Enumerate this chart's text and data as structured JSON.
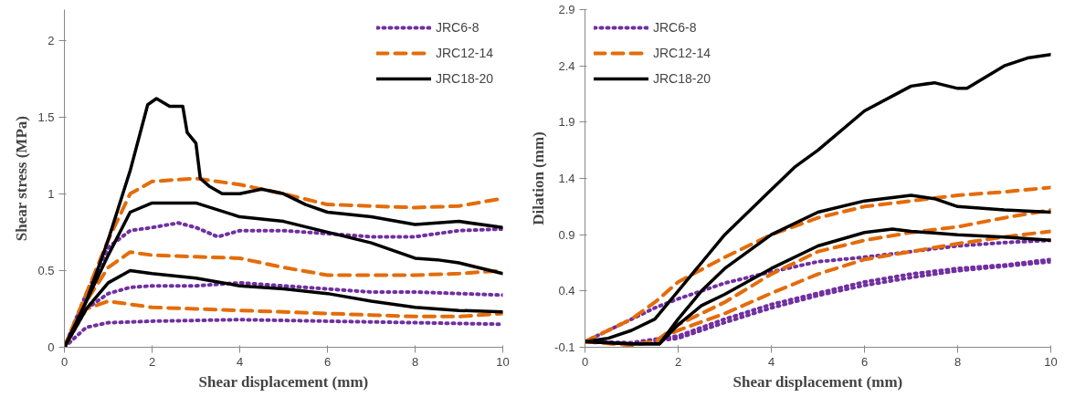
{
  "chart_data": [
    {
      "type": "line",
      "xlabel": "Shear displacement (mm)",
      "ylabel": "Shear stress (MPa)",
      "xlim": [
        0,
        10
      ],
      "ylim": [
        0,
        2.2
      ],
      "xticks": [
        0,
        2,
        4,
        6,
        8,
        10
      ],
      "yticks": [
        0,
        0.5,
        1,
        1.5,
        2
      ],
      "grid": false,
      "legend": "top right",
      "series": [
        {
          "name": "JRC6-8",
          "color": "#7030a0",
          "line_style": "dotted",
          "x": [
            0,
            0.5,
            1,
            1.5,
            2,
            2.6,
            3,
            3.5,
            4,
            5,
            6,
            7,
            8,
            9,
            10
          ],
          "values": [
            0,
            0.35,
            0.65,
            0.76,
            0.78,
            0.81,
            0.78,
            0.72,
            0.76,
            0.76,
            0.74,
            0.72,
            0.72,
            0.76,
            0.77
          ]
        },
        {
          "name": "JRC12-14",
          "color": "#e46c0a",
          "line_style": "dashed",
          "x": [
            0,
            0.5,
            1,
            1.5,
            2,
            3,
            4,
            5,
            6,
            7,
            8,
            9,
            10
          ],
          "values": [
            0,
            0.35,
            0.7,
            1.0,
            1.08,
            1.1,
            1.06,
            1.0,
            0.93,
            0.92,
            0.91,
            0.92,
            0.97
          ]
        },
        {
          "name": "JRC18-20",
          "color": "#000000",
          "line_style": "solid",
          "x": [
            0,
            0.5,
            1,
            1.5,
            1.9,
            2.1,
            2.4,
            2.7,
            2.8,
            3.0,
            3.1,
            3.3,
            3.6,
            4,
            4.5,
            5,
            5.5,
            6,
            7,
            8,
            9,
            10
          ],
          "values": [
            0,
            0.3,
            0.7,
            1.15,
            1.58,
            1.62,
            1.57,
            1.57,
            1.4,
            1.33,
            1.1,
            1.05,
            1.0,
            1.0,
            1.03,
            1.0,
            0.93,
            0.88,
            0.85,
            0.8,
            0.82,
            0.78
          ]
        },
        {
          "color": "#7030a0",
          "line_style": "dotted",
          "x": [
            0,
            0.5,
            1,
            1.5,
            2,
            3,
            4,
            5,
            6,
            7,
            8,
            9,
            10
          ],
          "values": [
            0,
            0.25,
            0.35,
            0.39,
            0.4,
            0.4,
            0.42,
            0.4,
            0.38,
            0.36,
            0.36,
            0.35,
            0.34
          ]
        },
        {
          "color": "#7030a0",
          "line_style": "dotted",
          "x": [
            0,
            0.5,
            1,
            2,
            4,
            6,
            8,
            10
          ],
          "values": [
            0,
            0.13,
            0.16,
            0.17,
            0.18,
            0.17,
            0.16,
            0.15
          ]
        },
        {
          "color": "#e46c0a",
          "line_style": "dashed",
          "x": [
            0,
            0.5,
            1,
            1.5,
            2,
            3,
            4,
            5,
            6,
            7,
            8,
            9,
            10
          ],
          "values": [
            0,
            0.3,
            0.52,
            0.62,
            0.6,
            0.59,
            0.58,
            0.52,
            0.47,
            0.47,
            0.47,
            0.48,
            0.5
          ]
        },
        {
          "color": "#e46c0a",
          "line_style": "dashed",
          "x": [
            0,
            0.5,
            1,
            1.5,
            2,
            3,
            4,
            5,
            6,
            7,
            8,
            9,
            10
          ],
          "values": [
            0,
            0.25,
            0.3,
            0.28,
            0.26,
            0.25,
            0.24,
            0.23,
            0.22,
            0.21,
            0.2,
            0.2,
            0.22
          ]
        },
        {
          "color": "#000000",
          "line_style": "solid",
          "x": [
            0,
            0.5,
            1,
            1.5,
            2,
            3,
            4,
            5,
            6,
            7,
            8,
            8.5,
            9,
            10
          ],
          "values": [
            0,
            0.3,
            0.6,
            0.88,
            0.94,
            0.94,
            0.85,
            0.82,
            0.75,
            0.68,
            0.58,
            0.57,
            0.55,
            0.48
          ]
        },
        {
          "color": "#000000",
          "line_style": "solid",
          "x": [
            0,
            0.5,
            1,
            1.5,
            2,
            3,
            4,
            5,
            6,
            7,
            8,
            9,
            10
          ],
          "values": [
            0,
            0.25,
            0.42,
            0.5,
            0.48,
            0.45,
            0.4,
            0.38,
            0.35,
            0.3,
            0.26,
            0.24,
            0.23
          ]
        }
      ]
    },
    {
      "type": "line",
      "xlabel": "Shear displacement (mm)",
      "ylabel": "Dilation (mm)",
      "xlim": [
        0,
        10
      ],
      "ylim": [
        -0.1,
        2.9
      ],
      "xticks": [
        0,
        2,
        4,
        6,
        8,
        10
      ],
      "yticks": [
        -0.1,
        0.4,
        0.9,
        1.4,
        1.9,
        2.4,
        2.9
      ],
      "grid": false,
      "legend": "top left",
      "series": [
        {
          "name": "JRC6-8",
          "color": "#7030a0",
          "line_style": "dotted",
          "x": [
            0,
            0.5,
            1,
            1.5,
            2,
            3,
            4,
            5,
            6,
            7,
            8,
            9,
            10
          ],
          "values": [
            -0.05,
            0.05,
            0.15,
            0.25,
            0.33,
            0.47,
            0.57,
            0.66,
            0.7,
            0.75,
            0.8,
            0.83,
            0.85
          ]
        },
        {
          "name": "JRC12-14",
          "color": "#e46c0a",
          "line_style": "dashed",
          "x": [
            0,
            0.5,
            1,
            1.5,
            2,
            3,
            4,
            5,
            6,
            7,
            8,
            9,
            10
          ],
          "values": [
            -0.05,
            0.05,
            0.15,
            0.3,
            0.48,
            0.7,
            0.9,
            1.05,
            1.15,
            1.2,
            1.25,
            1.28,
            1.32
          ]
        },
        {
          "name": "JRC18-20",
          "color": "#000000",
          "line_style": "solid",
          "x": [
            0,
            0.5,
            1,
            1.5,
            2,
            2.5,
            3,
            3.5,
            4,
            4.5,
            5,
            6,
            7,
            7.5,
            8,
            8.2,
            9,
            9.5,
            10
          ],
          "values": [
            -0.05,
            -0.02,
            0.05,
            0.15,
            0.4,
            0.65,
            0.9,
            1.1,
            1.3,
            1.5,
            1.65,
            2.0,
            2.22,
            2.25,
            2.2,
            2.2,
            2.4,
            2.47,
            2.5
          ]
        },
        {
          "color": "#7030a0",
          "line_style": "dotted",
          "x": [
            0,
            1,
            2,
            3,
            4,
            5,
            6,
            7,
            8,
            9,
            10
          ],
          "values": [
            -0.05,
            -0.06,
            0.0,
            0.15,
            0.28,
            0.38,
            0.48,
            0.55,
            0.6,
            0.63,
            0.68
          ]
        },
        {
          "color": "#7030a0",
          "line_style": "dotted",
          "x": [
            0,
            1,
            2,
            3,
            4,
            5,
            6,
            7,
            8,
            9,
            10
          ],
          "values": [
            -0.05,
            -0.07,
            -0.02,
            0.12,
            0.25,
            0.36,
            0.45,
            0.52,
            0.58,
            0.62,
            0.66
          ]
        },
        {
          "color": "#e46c0a",
          "line_style": "dashed",
          "x": [
            0,
            1,
            1.5,
            2,
            3,
            4,
            5,
            6,
            7,
            8,
            9,
            10
          ],
          "values": [
            -0.05,
            -0.08,
            -0.05,
            0.1,
            0.3,
            0.55,
            0.75,
            0.85,
            0.92,
            0.97,
            1.05,
            1.12
          ]
        },
        {
          "color": "#e46c0a",
          "line_style": "dashed",
          "x": [
            0,
            1,
            1.5,
            2,
            3,
            4,
            5,
            6,
            7,
            8,
            9,
            10
          ],
          "values": [
            -0.05,
            -0.08,
            -0.05,
            0.05,
            0.2,
            0.38,
            0.55,
            0.68,
            0.75,
            0.82,
            0.88,
            0.93
          ]
        },
        {
          "color": "#000000",
          "line_style": "solid",
          "x": [
            0,
            1,
            1.6,
            2,
            2.5,
            3,
            4,
            5,
            6,
            7,
            7.5,
            8,
            9,
            10
          ],
          "values": [
            -0.05,
            -0.07,
            -0.07,
            0.15,
            0.4,
            0.6,
            0.9,
            1.1,
            1.2,
            1.25,
            1.22,
            1.15,
            1.12,
            1.1
          ]
        },
        {
          "color": "#000000",
          "line_style": "solid",
          "x": [
            0,
            1,
            1.6,
            2,
            2.5,
            3,
            4,
            5,
            6,
            6.6,
            7,
            8,
            9,
            10
          ],
          "values": [
            -0.05,
            -0.07,
            -0.07,
            0.1,
            0.27,
            0.37,
            0.6,
            0.8,
            0.92,
            0.95,
            0.93,
            0.9,
            0.88,
            0.85
          ]
        }
      ]
    }
  ]
}
